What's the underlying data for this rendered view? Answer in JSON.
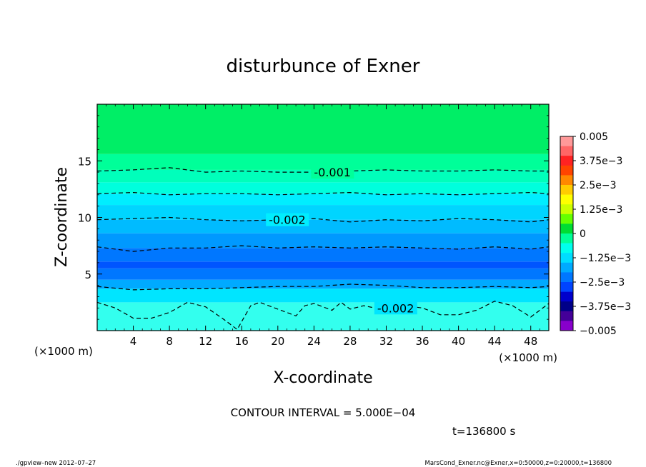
{
  "chart_data": {
    "type": "heatmap",
    "title": "disturbunce of Exner",
    "xlabel": "X-coordinate",
    "ylabel": "Z-coordinate",
    "x_unit_left": "(×1000 m)",
    "x_unit_right": "(×1000 m)",
    "xlim": [
      0,
      50
    ],
    "ylim": [
      0,
      20
    ],
    "x_ticks": [
      4,
      8,
      12,
      16,
      20,
      24,
      28,
      32,
      36,
      40,
      44,
      48
    ],
    "x_tick_labels": [
      "4",
      "8",
      "12",
      "16",
      "20",
      "24",
      "28",
      "32",
      "36",
      "40",
      "44",
      "48"
    ],
    "y_ticks": [
      5,
      10,
      15
    ],
    "y_tick_labels": [
      "5",
      "10",
      "15"
    ],
    "bands": [
      {
        "z0": 0.0,
        "z1": 2.5,
        "color": "#33ffee"
      },
      {
        "z0": 2.5,
        "z1": 3.7,
        "color": "#00e5ff"
      },
      {
        "z0": 3.7,
        "z1": 4.5,
        "color": "#00aaff"
      },
      {
        "z0": 4.5,
        "z1": 5.5,
        "color": "#0077ff"
      },
      {
        "z0": 5.5,
        "z1": 6.1,
        "color": "#0055ff"
      },
      {
        "z0": 6.1,
        "z1": 7.3,
        "color": "#0077ff"
      },
      {
        "z0": 7.3,
        "z1": 8.6,
        "color": "#0099ff"
      },
      {
        "z0": 8.6,
        "z1": 9.8,
        "color": "#00bbff"
      },
      {
        "z0": 9.8,
        "z1": 11.1,
        "color": "#00d5ff"
      },
      {
        "z0": 11.1,
        "z1": 12.1,
        "color": "#00eeff"
      },
      {
        "z0": 12.1,
        "z1": 13.1,
        "color": "#00ffdd"
      },
      {
        "z0": 13.1,
        "z1": 14.2,
        "color": "#00ffbb"
      },
      {
        "z0": 14.2,
        "z1": 15.6,
        "color": "#00ff99"
      },
      {
        "z0": 15.6,
        "z1": 20.0,
        "color": "#00ee66"
      }
    ],
    "contours": [
      {
        "label": "-0.001",
        "label_x": 24,
        "label_z": 14.0,
        "points": [
          [
            0,
            14.1
          ],
          [
            4,
            14.2
          ],
          [
            8,
            14.4
          ],
          [
            12,
            14.0
          ],
          [
            16,
            14.1
          ],
          [
            20,
            14.0
          ],
          [
            24,
            14.0
          ],
          [
            28,
            14.1
          ],
          [
            32,
            14.2
          ],
          [
            36,
            14.1
          ],
          [
            40,
            14.1
          ],
          [
            44,
            14.2
          ],
          [
            48,
            14.1
          ],
          [
            50,
            14.1
          ]
        ]
      },
      {
        "label": "",
        "label_x": null,
        "label_z": null,
        "points": [
          [
            0,
            12.1
          ],
          [
            4,
            12.2
          ],
          [
            8,
            12.0
          ],
          [
            12,
            12.1
          ],
          [
            16,
            12.1
          ],
          [
            20,
            12.0
          ],
          [
            24,
            12.1
          ],
          [
            28,
            12.2
          ],
          [
            32,
            12.0
          ],
          [
            36,
            12.1
          ],
          [
            40,
            12.0
          ],
          [
            44,
            12.1
          ],
          [
            48,
            12.2
          ],
          [
            50,
            12.1
          ]
        ]
      },
      {
        "label": "-0.002",
        "label_x": 19,
        "label_z": 9.8,
        "points": [
          [
            0,
            9.8
          ],
          [
            4,
            9.9
          ],
          [
            8,
            10.0
          ],
          [
            12,
            9.8
          ],
          [
            16,
            9.7
          ],
          [
            20,
            9.8
          ],
          [
            24,
            9.9
          ],
          [
            28,
            9.6
          ],
          [
            32,
            9.8
          ],
          [
            36,
            9.7
          ],
          [
            40,
            9.9
          ],
          [
            44,
            9.8
          ],
          [
            48,
            9.6
          ],
          [
            50,
            9.8
          ]
        ]
      },
      {
        "label": "",
        "label_x": null,
        "label_z": null,
        "points": [
          [
            0,
            7.4
          ],
          [
            4,
            7.0
          ],
          [
            8,
            7.3
          ],
          [
            12,
            7.3
          ],
          [
            16,
            7.5
          ],
          [
            20,
            7.3
          ],
          [
            24,
            7.4
          ],
          [
            28,
            7.3
          ],
          [
            32,
            7.4
          ],
          [
            36,
            7.3
          ],
          [
            40,
            7.2
          ],
          [
            44,
            7.4
          ],
          [
            48,
            7.2
          ],
          [
            50,
            7.4
          ]
        ]
      },
      {
        "label": "",
        "label_x": null,
        "label_z": null,
        "points": [
          [
            0,
            3.9
          ],
          [
            4,
            3.6
          ],
          [
            8,
            3.7
          ],
          [
            12,
            3.7
          ],
          [
            16,
            3.8
          ],
          [
            20,
            3.9
          ],
          [
            24,
            3.9
          ],
          [
            28,
            4.1
          ],
          [
            32,
            4.0
          ],
          [
            36,
            3.8
          ],
          [
            40,
            3.8
          ],
          [
            44,
            3.9
          ],
          [
            48,
            3.8
          ],
          [
            50,
            3.9
          ]
        ]
      },
      {
        "label": "-0.002",
        "label_x": 31,
        "label_z": 2.0,
        "points": [
          [
            0,
            2.5
          ],
          [
            2,
            2.0
          ],
          [
            4,
            1.1
          ],
          [
            6,
            1.1
          ],
          [
            8,
            1.6
          ],
          [
            10,
            2.5
          ],
          [
            12,
            2.1
          ],
          [
            14,
            1.0
          ],
          [
            15.5,
            0.1
          ],
          [
            17,
            2.2
          ],
          [
            18,
            2.5
          ],
          [
            20,
            1.9
          ],
          [
            22,
            1.3
          ],
          [
            23,
            2.2
          ],
          [
            24,
            2.4
          ],
          [
            26,
            1.8
          ],
          [
            27,
            2.5
          ],
          [
            28,
            1.9
          ],
          [
            29.5,
            2.2
          ],
          [
            32,
            1.8
          ],
          [
            34,
            2.2
          ],
          [
            36,
            2.0
          ],
          [
            38,
            1.4
          ],
          [
            40,
            1.4
          ],
          [
            42,
            1.8
          ],
          [
            44,
            2.6
          ],
          [
            46,
            2.2
          ],
          [
            48,
            1.2
          ],
          [
            50,
            2.4
          ]
        ]
      }
    ]
  },
  "colorbar": {
    "colors": [
      "#ff9999",
      "#ff6666",
      "#ff2222",
      "#ff4400",
      "#ff8800",
      "#ffcc00",
      "#ffff00",
      "#ccff00",
      "#66ff00",
      "#00dd33",
      "#00ff99",
      "#00ffee",
      "#00ddff",
      "#00aaff",
      "#0077ff",
      "#0044ff",
      "#0000cc",
      "#000088",
      "#440099",
      "#8800cc"
    ],
    "labels": [
      "0.005",
      "3.75e−3",
      "2.5e−3",
      "1.25e−3",
      "0",
      "−1.25e−3",
      "−2.5e−3",
      "−3.75e−3",
      "−0.005"
    ]
  },
  "footer": {
    "contour_interval": "CONTOUR INTERVAL = 5.000E−04",
    "time": "t=136800 s",
    "left": "./gpview–new   2012–07–27",
    "right": "MarsCond_Exner.nc@Exner,x=0:50000,z=0:20000,t=136800"
  }
}
